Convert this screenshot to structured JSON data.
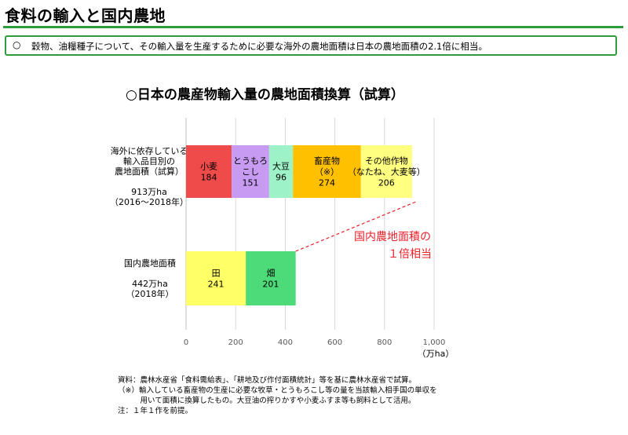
{
  "page": {
    "title": "食料の輸入と国内農地",
    "summary_mark": "○",
    "summary": "穀物、油糧種子について、その輸入量を生産するために必要な海外の農地面積は日本の農地面積の2.1倍に相当。"
  },
  "row_labels": {
    "overseas": [
      "海外に依存している",
      "輸入品目別の",
      "農地面積（試算）",
      "",
      "913万ha",
      "（2016～2018年）"
    ],
    "domestic": [
      "国内農地面積",
      "",
      "442万ha",
      "（2018年）"
    ]
  },
  "annotation": [
    "国内農地面積の",
    "１倍相当"
  ],
  "notes": [
    "資料：農林水産省「食料需給表」、「耕地及び作付面積統計」等を基に農林水産省で試算。",
    "（※）輸入している畜産物の生産に必要な牧草・とうもろこし等の量を当該輸入相手国の単収を",
    "　　　用いて面積に換算したもの。大豆油の搾りかすや小麦ふすま等も飼料として活用。",
    "注：１年１作を前提。"
  ],
  "colors": {
    "accent": "#2e9c3c",
    "annotation": "#e8202a"
  },
  "chart_data": {
    "type": "bar",
    "orientation": "horizontal",
    "stacked": true,
    "title": "○日本の農産物輸入量の農地面積換算（試算）",
    "xlabel": "（万ha）",
    "xlim": [
      0,
      1000
    ],
    "xticks": [
      "0",
      "200",
      "400",
      "600",
      "800",
      "1,000"
    ],
    "grid": true,
    "bars": [
      {
        "row": "overseas",
        "segments": [
          {
            "label": [
              "小麦"
            ],
            "value": 184,
            "color": "#f04b4b"
          },
          {
            "label": [
              "とうもろ",
              "こし"
            ],
            "value": 151,
            "color": "#c79bf2"
          },
          {
            "label": [
              "大豆"
            ],
            "value": 96,
            "color": "#9df2c8"
          },
          {
            "label": [
              "畜産物",
              "（※）"
            ],
            "value": 274,
            "color": "#ffc000"
          },
          {
            "label": [
              "その他作物",
              "（なたね、大麦等）"
            ],
            "value": 206,
            "color": "#ffff80"
          }
        ]
      },
      {
        "row": "domestic",
        "segments": [
          {
            "label": [
              "田"
            ],
            "value": 241,
            "color": "#ffff66"
          },
          {
            "label": [
              "畑"
            ],
            "value": 201,
            "color": "#4ddb7a"
          }
        ]
      }
    ]
  }
}
